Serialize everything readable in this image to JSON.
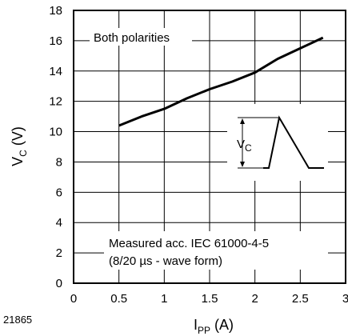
{
  "chart_data": {
    "type": "line",
    "figure_id": "21865",
    "xlabel": {
      "main": "I",
      "sub": "PP",
      "unit": " (A)"
    },
    "ylabel": {
      "main": "V",
      "sub": "C",
      "unit": " (V)"
    },
    "xlim": [
      0,
      3
    ],
    "ylim": [
      0,
      18
    ],
    "x_ticks": [
      "0",
      "0.5",
      "1",
      "1.5",
      "2",
      "2.5",
      "3"
    ],
    "y_ticks": [
      "0",
      "2",
      "4",
      "6",
      "8",
      "10",
      "12",
      "14",
      "16",
      "18"
    ],
    "grid": true,
    "series": [
      {
        "x": [
          0.5,
          0.75,
          1.0,
          1.25,
          1.5,
          1.75,
          2.0,
          2.25,
          2.5,
          2.75
        ],
        "y": [
          10.4,
          11.0,
          11.5,
          12.2,
          12.8,
          13.3,
          13.9,
          14.8,
          15.5,
          16.2
        ]
      }
    ],
    "annotations": {
      "polarity": "Both polarities",
      "measurement_line1": "Measured acc. IEC 61000-4-5",
      "measurement_line2": "(8/20 µs - wave form)",
      "inset_label_main": "V",
      "inset_label_sub": "C"
    }
  }
}
